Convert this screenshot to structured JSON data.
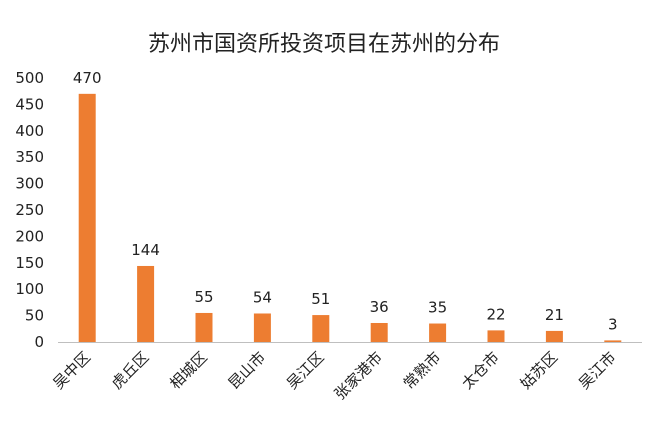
{
  "chart_data": {
    "type": "bar",
    "title": "苏州市国资所投资项目在苏州的分布",
    "categories": [
      "吴中区",
      "虎丘区",
      "相城区",
      "昆山市",
      "吴江区",
      "张家港市",
      "常熟市",
      "太仓市",
      "姑苏区",
      "吴江市"
    ],
    "values": [
      470,
      144,
      55,
      54,
      51,
      36,
      35,
      22,
      21,
      3
    ],
    "ylim": [
      0,
      500
    ],
    "yticks": [
      0,
      50,
      100,
      150,
      200,
      250,
      300,
      350,
      400,
      450,
      500
    ],
    "grid": false,
    "legend": "none",
    "bar_color": "#ED7D31",
    "axis_color": "#BFBFBF"
  }
}
